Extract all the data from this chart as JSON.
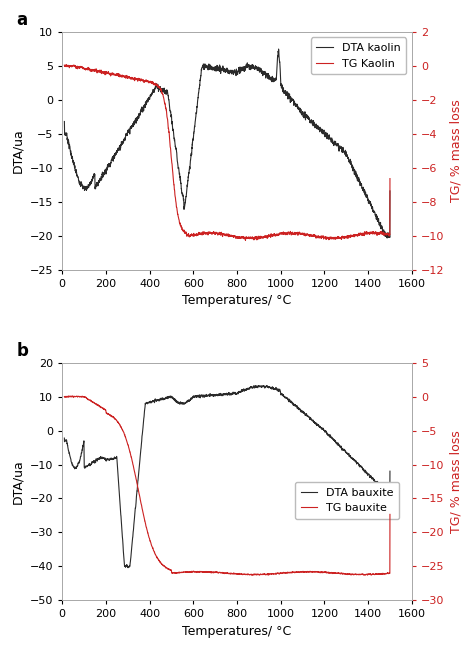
{
  "panel_a": {
    "title": "a",
    "xlabel": "Temperatures/ °C",
    "ylabel_left": "DTA/ua",
    "ylabel_right": "TG/ % mass loss",
    "xlim": [
      0,
      1600
    ],
    "ylim_left": [
      -25,
      10
    ],
    "ylim_right": [
      -12,
      2
    ],
    "yticks_left": [
      -25,
      -20,
      -15,
      -10,
      -5,
      0,
      5,
      10
    ],
    "yticks_right": [
      -12,
      -10,
      -8,
      -6,
      -4,
      -2,
      0,
      2
    ],
    "xticks": [
      0,
      200,
      400,
      600,
      800,
      1000,
      1200,
      1400,
      1600
    ],
    "legend_labels": [
      "DTA kaolin",
      "TG Kaolin"
    ],
    "legend_loc": "upper right"
  },
  "panel_b": {
    "title": "b",
    "xlabel": "Temperatures/ °C",
    "ylabel_left": "DTA/ua",
    "ylabel_right": "TG/ % mass loss",
    "xlim": [
      0,
      1600
    ],
    "ylim_left": [
      -50,
      20
    ],
    "ylim_right": [
      -30,
      5
    ],
    "yticks_left": [
      -50,
      -40,
      -30,
      -20,
      -10,
      0,
      10,
      20
    ],
    "yticks_right": [
      -30,
      -25,
      -20,
      -15,
      -10,
      -5,
      0,
      5
    ],
    "xticks": [
      0,
      200,
      400,
      600,
      800,
      1000,
      1200,
      1400,
      1600
    ],
    "legend_labels": [
      "DTA bauxite",
      "TG bauxite"
    ],
    "legend_loc": "center right"
  },
  "figure_bg": "#ffffff",
  "dta_color": "#2a2a2a",
  "tg_color": "#cc2222",
  "linewidth": 0.8,
  "font_size": 8,
  "label_font_size": 9,
  "spine_color": "#aaaaaa"
}
